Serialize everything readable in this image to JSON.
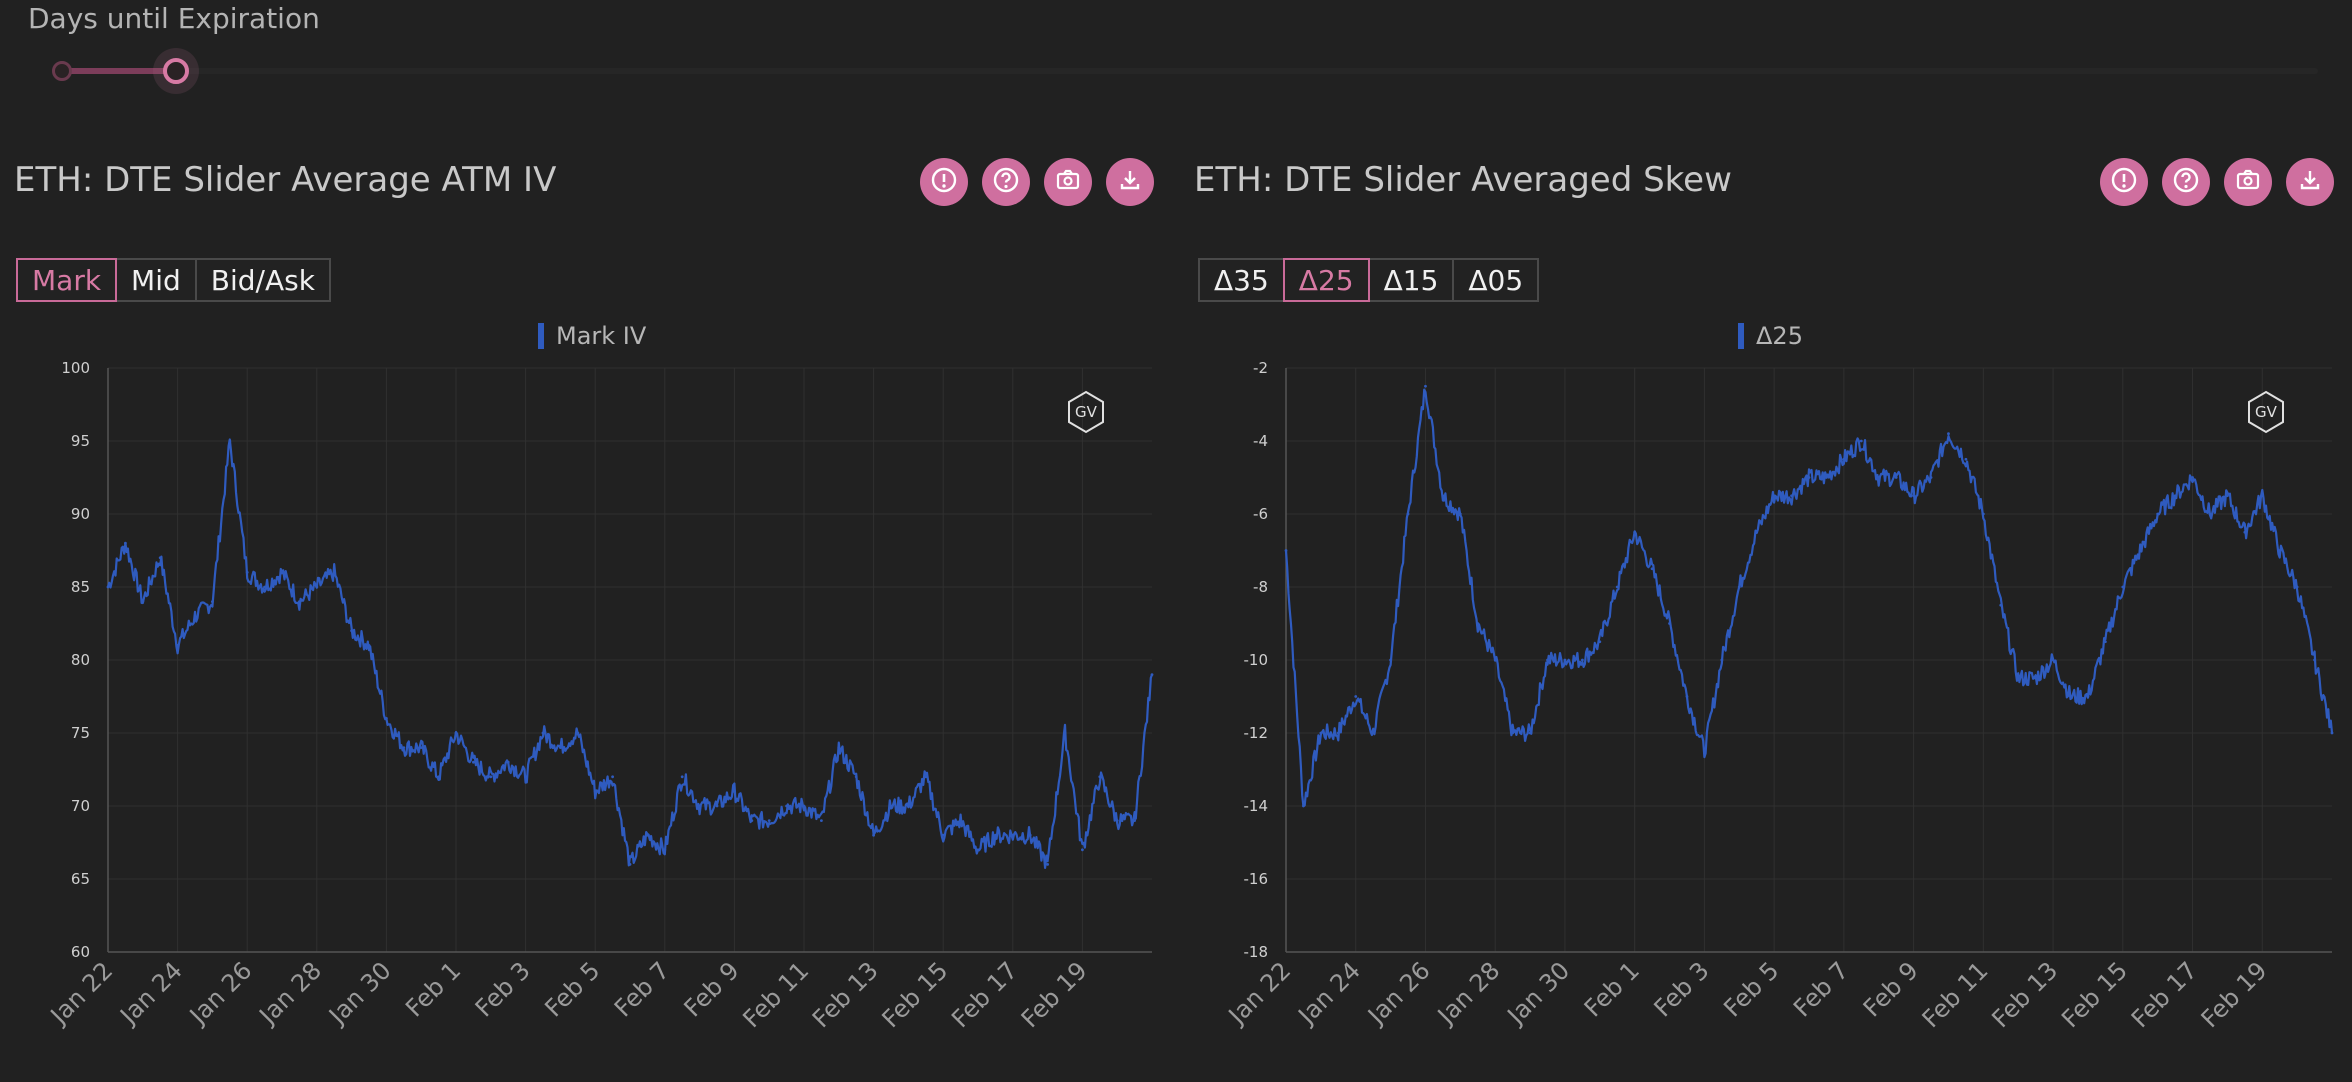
{
  "slider": {
    "label": "Days until Expiration"
  },
  "colors": {
    "accent": "#d77aa4",
    "button_bg": "#cf6f9f",
    "series": "#2f5bbf",
    "grid": "#303030",
    "axis_text": "#9a9a9a"
  },
  "icons": [
    "alert-icon",
    "help-icon",
    "camera-icon",
    "download-icon"
  ],
  "left": {
    "title": "ETH: DTE Slider Average ATM IV",
    "buttons": [
      {
        "label": "Mark",
        "active": true
      },
      {
        "label": "Mid",
        "active": false
      },
      {
        "label": "Bid/Ask",
        "active": false
      }
    ],
    "badge": "GV",
    "chart_data": {
      "type": "line",
      "title": "",
      "legend": "top-center",
      "grid": true,
      "ylim": [
        60,
        100
      ],
      "yticks": [
        100,
        95,
        90,
        85,
        80,
        75,
        70,
        65,
        60
      ],
      "xticks": [
        "Jan 22",
        "Jan 24",
        "Jan 26",
        "Jan 28",
        "Jan 30",
        "Feb 1",
        "Feb 3",
        "Feb 5",
        "Feb 7",
        "Feb 9",
        "Feb 11",
        "Feb 13",
        "Feb 15",
        "Feb 17",
        "Feb 19"
      ],
      "series": [
        {
          "name": "Mark IV",
          "x": [
            "Jan 22",
            "Jan 22 12h",
            "Jan 23",
            "Jan 23 12h",
            "Jan 24",
            "Jan 24 12h",
            "Jan 25",
            "Jan 25 12h",
            "Jan 26",
            "Jan 26 12h",
            "Jan 27",
            "Jan 27 12h",
            "Jan 28",
            "Jan 28 12h",
            "Jan 29",
            "Jan 29 12h",
            "Jan 30",
            "Jan 30 12h",
            "Jan 31",
            "Jan 31 12h",
            "Feb 1",
            "Feb 1 12h",
            "Feb 2",
            "Feb 2 12h",
            "Feb 3",
            "Feb 3 12h",
            "Feb 4",
            "Feb 4 12h",
            "Feb 5",
            "Feb 5 12h",
            "Feb 6",
            "Feb 6 12h",
            "Feb 7",
            "Feb 7 12h",
            "Feb 8",
            "Feb 8 12h",
            "Feb 9",
            "Feb 9 12h",
            "Feb 10",
            "Feb 10 12h",
            "Feb 11",
            "Feb 11 12h",
            "Feb 12",
            "Feb 12 12h",
            "Feb 13",
            "Feb 13 12h",
            "Feb 14",
            "Feb 14 12h",
            "Feb 15",
            "Feb 15 12h",
            "Feb 16",
            "Feb 16 12h",
            "Feb 17",
            "Feb 17 12h",
            "Feb 18",
            "Feb 18 12h",
            "Feb 19",
            "Feb 19 12h",
            "Feb 20",
            "Feb 20 12h",
            "Feb 21"
          ],
          "values": [
            85,
            88,
            84,
            87,
            81,
            83,
            84,
            95,
            86,
            85,
            86,
            84,
            85,
            86,
            82,
            81,
            76,
            74,
            74,
            72,
            75,
            73,
            72,
            73,
            72,
            75,
            74,
            75,
            71,
            72,
            66,
            68,
            67,
            72,
            70,
            70,
            71,
            69,
            69,
            70,
            70,
            69,
            74,
            72,
            68,
            70,
            70,
            72,
            68,
            69,
            67,
            68,
            68,
            68,
            66,
            75,
            67,
            72,
            69,
            69,
            79
          ]
        }
      ]
    }
  },
  "right": {
    "title": "ETH: DTE Slider Averaged Skew",
    "buttons": [
      {
        "label": "Δ35",
        "active": false
      },
      {
        "label": "Δ25",
        "active": true
      },
      {
        "label": "Δ15",
        "active": false
      },
      {
        "label": "Δ05",
        "active": false
      }
    ],
    "badge": "GV",
    "chart_data": {
      "type": "line",
      "title": "",
      "legend": "top-center",
      "grid": true,
      "ylim": [
        -18,
        -2
      ],
      "yticks": [
        -2,
        -4,
        -6,
        -8,
        -10,
        -12,
        -14,
        -16,
        -18
      ],
      "xticks": [
        "Jan 22",
        "Jan 24",
        "Jan 26",
        "Jan 28",
        "Jan 30",
        "Feb 1",
        "Feb 3",
        "Feb 5",
        "Feb 7",
        "Feb 9",
        "Feb 11",
        "Feb 13",
        "Feb 15",
        "Feb 17",
        "Feb 19"
      ],
      "series": [
        {
          "name": "Δ25",
          "x": [
            "Jan 22",
            "Jan 22 12h",
            "Jan 23",
            "Jan 23 12h",
            "Jan 24",
            "Jan 24 12h",
            "Jan 25",
            "Jan 25 12h",
            "Jan 26",
            "Jan 26 12h",
            "Jan 27",
            "Jan 27 12h",
            "Jan 28",
            "Jan 28 12h",
            "Jan 29",
            "Jan 29 12h",
            "Jan 30",
            "Jan 30 12h",
            "Jan 31",
            "Jan 31 12h",
            "Feb 1",
            "Feb 1 12h",
            "Feb 2",
            "Feb 2 12h",
            "Feb 3",
            "Feb 3 12h",
            "Feb 4",
            "Feb 4 12h",
            "Feb 5",
            "Feb 5 12h",
            "Feb 6",
            "Feb 6 12h",
            "Feb 7",
            "Feb 7 12h",
            "Feb 8",
            "Feb 8 12h",
            "Feb 9",
            "Feb 9 12h",
            "Feb 10",
            "Feb 10 12h",
            "Feb 11",
            "Feb 11 12h",
            "Feb 12",
            "Feb 12 12h",
            "Feb 13",
            "Feb 13 12h",
            "Feb 14",
            "Feb 14 12h",
            "Feb 15",
            "Feb 15 12h",
            "Feb 16",
            "Feb 16 12h",
            "Feb 17",
            "Feb 17 12h",
            "Feb 18",
            "Feb 18 12h",
            "Feb 19",
            "Feb 19 12h",
            "Feb 20",
            "Feb 20 12h",
            "Feb 21"
          ],
          "values": [
            -7,
            -14,
            -12,
            -12,
            -11,
            -12,
            -10,
            -6,
            -2.5,
            -5.5,
            -6,
            -9,
            -10,
            -12,
            -12,
            -10,
            -10,
            -10,
            -9.5,
            -8,
            -6.5,
            -7.5,
            -9,
            -11,
            -12.5,
            -10,
            -8,
            -6.5,
            -5.5,
            -5.5,
            -5,
            -5,
            -4.5,
            -4,
            -5,
            -5,
            -5.5,
            -5,
            -3.8,
            -4.5,
            -6,
            -8.5,
            -10.5,
            -10.5,
            -10,
            -11,
            -11,
            -9.5,
            -8,
            -7,
            -6,
            -5.5,
            -5,
            -6,
            -5.5,
            -6.5,
            -5.5,
            -7,
            -8,
            -10,
            -12
          ]
        }
      ]
    }
  }
}
